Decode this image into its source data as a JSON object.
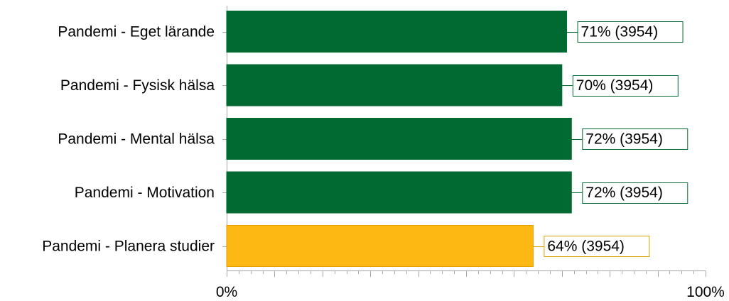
{
  "chart_data": {
    "type": "bar",
    "orientation": "horizontal",
    "categories": [
      "Pandemi - Eget lärande",
      "Pandemi - Fysisk hälsa",
      "Pandemi - Mental hälsa",
      "Pandemi - Motivation",
      "Pandemi - Planera studier"
    ],
    "values": [
      71,
      70,
      72,
      72,
      64
    ],
    "counts": [
      3954,
      3954,
      3954,
      3954,
      3954
    ],
    "data_labels": [
      "71% (3954)",
      "70% (3954)",
      "72% (3954)",
      "72% (3954)",
      "64% (3954)"
    ],
    "bar_colors": [
      "#006a32",
      "#006a32",
      "#006a32",
      "#006a32",
      "#fdb813"
    ],
    "label_border_colors": [
      "#006a32",
      "#006a32",
      "#006a32",
      "#006a32",
      "#e0a000"
    ],
    "xlim": [
      0,
      100
    ],
    "x_tick_labels": [
      "0%",
      "100%"
    ],
    "minor_tick_step": 2.5,
    "major_tick_step": 10,
    "grid": false,
    "legend": false
  }
}
